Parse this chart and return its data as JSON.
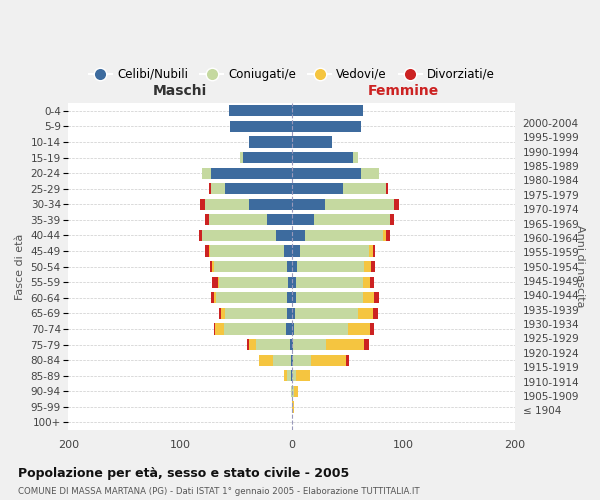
{
  "age_groups": [
    "100+",
    "95-99",
    "90-94",
    "85-89",
    "80-84",
    "75-79",
    "70-74",
    "65-69",
    "60-64",
    "55-59",
    "50-54",
    "45-49",
    "40-44",
    "35-39",
    "30-34",
    "25-29",
    "20-24",
    "15-19",
    "10-14",
    "5-9",
    "0-4"
  ],
  "birth_years": [
    "≤ 1904",
    "1905-1909",
    "1910-1914",
    "1915-1919",
    "1920-1924",
    "1925-1929",
    "1930-1934",
    "1935-1939",
    "1940-1944",
    "1945-1949",
    "1950-1954",
    "1955-1959",
    "1960-1964",
    "1965-1969",
    "1970-1974",
    "1975-1979",
    "1980-1984",
    "1985-1989",
    "1990-1994",
    "1995-1999",
    "2000-2004"
  ],
  "maschi_celibi": [
    0,
    0,
    0,
    1,
    1,
    2,
    5,
    4,
    4,
    3,
    4,
    7,
    14,
    22,
    38,
    60,
    72,
    44,
    38,
    55,
    56
  ],
  "maschi_coniugati": [
    0,
    0,
    1,
    3,
    16,
    30,
    56,
    56,
    64,
    62,
    66,
    66,
    66,
    52,
    40,
    12,
    8,
    2,
    0,
    0,
    0
  ],
  "maschi_vedovi": [
    0,
    0,
    0,
    3,
    12,
    6,
    8,
    3,
    2,
    1,
    1,
    1,
    0,
    0,
    0,
    0,
    0,
    0,
    0,
    0,
    0
  ],
  "maschi_divorziati": [
    0,
    0,
    0,
    0,
    0,
    2,
    1,
    2,
    2,
    5,
    2,
    4,
    3,
    4,
    4,
    2,
    0,
    0,
    0,
    0,
    0
  ],
  "femmine_nubili": [
    0,
    0,
    0,
    0,
    1,
    1,
    2,
    3,
    4,
    4,
    5,
    7,
    12,
    20,
    30,
    46,
    62,
    55,
    36,
    62,
    64
  ],
  "femmine_coniugate": [
    0,
    0,
    2,
    4,
    16,
    30,
    48,
    56,
    60,
    60,
    60,
    62,
    70,
    68,
    62,
    38,
    16,
    4,
    0,
    0,
    0
  ],
  "femmine_vedove": [
    0,
    2,
    4,
    12,
    32,
    34,
    20,
    14,
    10,
    6,
    6,
    4,
    2,
    0,
    0,
    0,
    0,
    0,
    0,
    0,
    0
  ],
  "femmine_divorziate": [
    0,
    0,
    0,
    0,
    2,
    4,
    4,
    4,
    4,
    4,
    4,
    2,
    4,
    4,
    4,
    2,
    0,
    0,
    0,
    0,
    0
  ],
  "color_celibi": "#3d6b9e",
  "color_coniugati": "#c5d9a0",
  "color_vedovi": "#f5c540",
  "color_divorziati": "#cc2222",
  "bg_color": "#f0f0f0",
  "plot_bg": "#ffffff",
  "title": "Popolazione per età, sesso e stato civile - 2005",
  "subtitle": "COMUNE DI MASSA MARTANA (PG) - Dati ISTAT 1° gennaio 2005 - Elaborazione TUTTITALIA.IT",
  "legend_labels": [
    "Celibi/Nubili",
    "Coniugati/e",
    "Vedovi/e",
    "Divorziati/e"
  ],
  "label_maschi": "Maschi",
  "label_femmine": "Femmine",
  "label_fasce": "Fasce di età",
  "label_anni": "Anni di nascita",
  "xlim": 200
}
